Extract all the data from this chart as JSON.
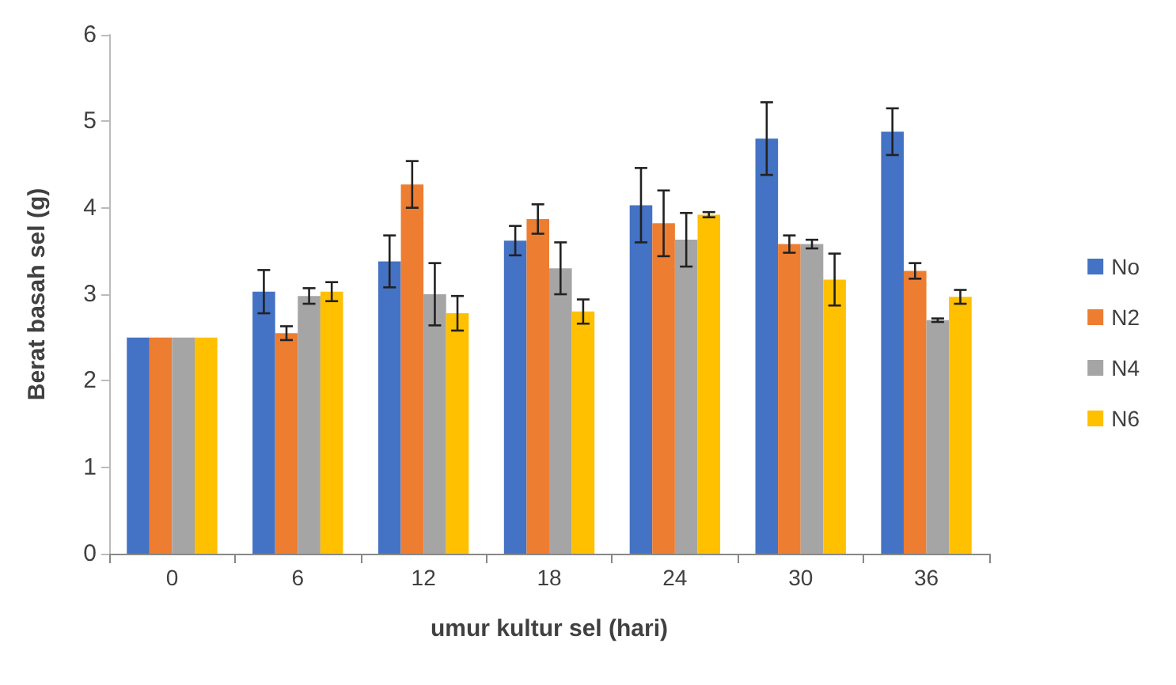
{
  "chart_data": {
    "type": "bar",
    "xlabel": "umur kultur sel (hari)",
    "ylabel": "Berat basah sel (g)",
    "categories": [
      "0",
      "6",
      "12",
      "18",
      "24",
      "30",
      "36"
    ],
    "series": [
      {
        "name": "No",
        "color": "#4472c4",
        "values": [
          2.5,
          3.03,
          3.38,
          3.62,
          4.03,
          4.8,
          4.88
        ],
        "errors": [
          null,
          0.25,
          0.3,
          0.17,
          0.43,
          0.42,
          0.27
        ]
      },
      {
        "name": "N2",
        "color": "#ed7d31",
        "values": [
          2.5,
          2.55,
          4.27,
          3.87,
          3.82,
          3.58,
          3.27
        ],
        "errors": [
          null,
          0.08,
          0.27,
          0.17,
          0.38,
          0.1,
          0.09
        ]
      },
      {
        "name": "N4",
        "color": "#a5a5a5",
        "values": [
          2.5,
          2.98,
          3.0,
          3.3,
          3.63,
          3.58,
          2.7
        ],
        "errors": [
          null,
          0.09,
          0.36,
          0.3,
          0.31,
          0.05,
          0.02
        ]
      },
      {
        "name": "N6",
        "color": "#ffc000",
        "values": [
          2.5,
          3.03,
          2.78,
          2.8,
          3.92,
          3.17,
          2.97
        ],
        "errors": [
          null,
          0.11,
          0.2,
          0.14,
          0.03,
          0.3,
          0.08
        ]
      }
    ],
    "ylim": [
      0,
      6
    ],
    "yticks": [
      0,
      1,
      2,
      3,
      4,
      5,
      6
    ],
    "grid": false,
    "legend": "right"
  }
}
